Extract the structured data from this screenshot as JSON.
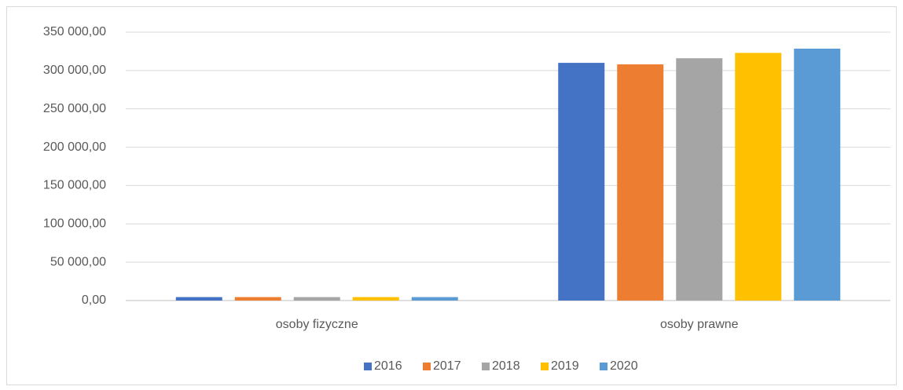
{
  "chart_data": {
    "type": "bar",
    "categories": [
      "osoby fizyczne",
      "osoby prawne"
    ],
    "series": [
      {
        "name": "2016",
        "color": "#4472c4",
        "values": [
          4500,
          310000
        ]
      },
      {
        "name": "2017",
        "color": "#ed7d31",
        "values": [
          4500,
          308000
        ]
      },
      {
        "name": "2018",
        "color": "#a5a5a5",
        "values": [
          4500,
          316000
        ]
      },
      {
        "name": "2019",
        "color": "#ffc000",
        "values": [
          4500,
          323000
        ]
      },
      {
        "name": "2020",
        "color": "#5b9bd5",
        "values": [
          4500,
          328500
        ]
      }
    ],
    "ylim": [
      0,
      350000
    ],
    "yticks": [
      {
        "value": 0,
        "label": "0,00"
      },
      {
        "value": 50000,
        "label": "50 000,00"
      },
      {
        "value": 100000,
        "label": "100 000,00"
      },
      {
        "value": 150000,
        "label": "150 000,00"
      },
      {
        "value": 200000,
        "label": "200 000,00"
      },
      {
        "value": 250000,
        "label": "250 000,00"
      },
      {
        "value": 300000,
        "label": "300 000,00"
      },
      {
        "value": 350000,
        "label": "350 000,00"
      }
    ],
    "grid": true,
    "legend": "bottom"
  }
}
